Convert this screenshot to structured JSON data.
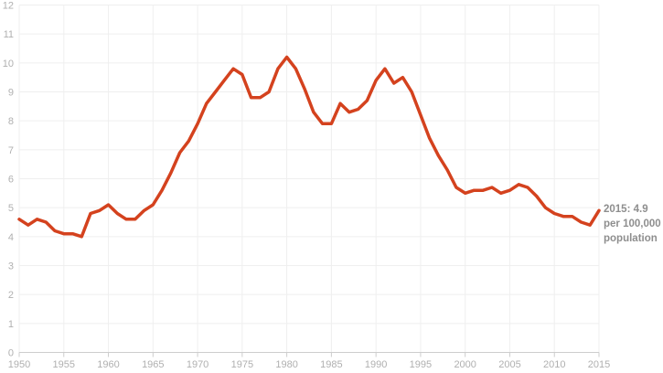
{
  "chart_data": {
    "type": "line",
    "title": "",
    "xlabel": "",
    "ylabel": "",
    "xlim": [
      1950,
      2015
    ],
    "ylim": [
      0,
      12
    ],
    "grid": true,
    "legend": false,
    "x_ticks": [
      1950,
      1955,
      1960,
      1965,
      1970,
      1975,
      1980,
      1985,
      1990,
      1995,
      2000,
      2005,
      2010,
      2015
    ],
    "y_ticks": [
      0,
      1,
      2,
      3,
      4,
      5,
      6,
      7,
      8,
      9,
      10,
      11,
      12
    ],
    "x": [
      1950,
      1951,
      1952,
      1953,
      1954,
      1955,
      1956,
      1957,
      1958,
      1959,
      1960,
      1961,
      1962,
      1963,
      1964,
      1965,
      1966,
      1967,
      1968,
      1969,
      1970,
      1971,
      1972,
      1973,
      1974,
      1975,
      1976,
      1977,
      1978,
      1979,
      1980,
      1981,
      1982,
      1983,
      1984,
      1985,
      1986,
      1987,
      1988,
      1989,
      1990,
      1991,
      1992,
      1993,
      1994,
      1995,
      1996,
      1997,
      1998,
      1999,
      2000,
      2001,
      2002,
      2003,
      2004,
      2005,
      2006,
      2007,
      2008,
      2009,
      2010,
      2011,
      2012,
      2013,
      2014,
      2015
    ],
    "values": [
      4.6,
      4.4,
      4.6,
      4.5,
      4.2,
      4.1,
      4.1,
      4.0,
      4.8,
      4.9,
      5.1,
      4.8,
      4.6,
      4.6,
      4.9,
      5.1,
      5.6,
      6.2,
      6.9,
      7.3,
      7.9,
      8.6,
      9.0,
      9.4,
      9.8,
      9.6,
      8.8,
      8.8,
      9.0,
      9.8,
      10.2,
      9.8,
      9.1,
      8.3,
      7.9,
      7.9,
      8.6,
      8.3,
      8.4,
      8.7,
      9.4,
      9.8,
      9.3,
      9.5,
      9.0,
      8.2,
      7.4,
      6.8,
      6.3,
      5.7,
      5.5,
      5.6,
      5.6,
      5.7,
      5.5,
      5.6,
      5.8,
      5.7,
      5.4,
      5.0,
      4.8,
      4.7,
      4.7,
      4.5,
      4.4,
      4.9
    ],
    "annotation": {
      "lines": [
        "2015: 4.9",
        "per 100,000",
        "population"
      ]
    },
    "colors": {
      "line": "#d4421e",
      "grid": "#efefef",
      "axis": "#cdcdcd",
      "tick_label": "#b0b0b0",
      "annotation": "#8e8e8e"
    }
  }
}
